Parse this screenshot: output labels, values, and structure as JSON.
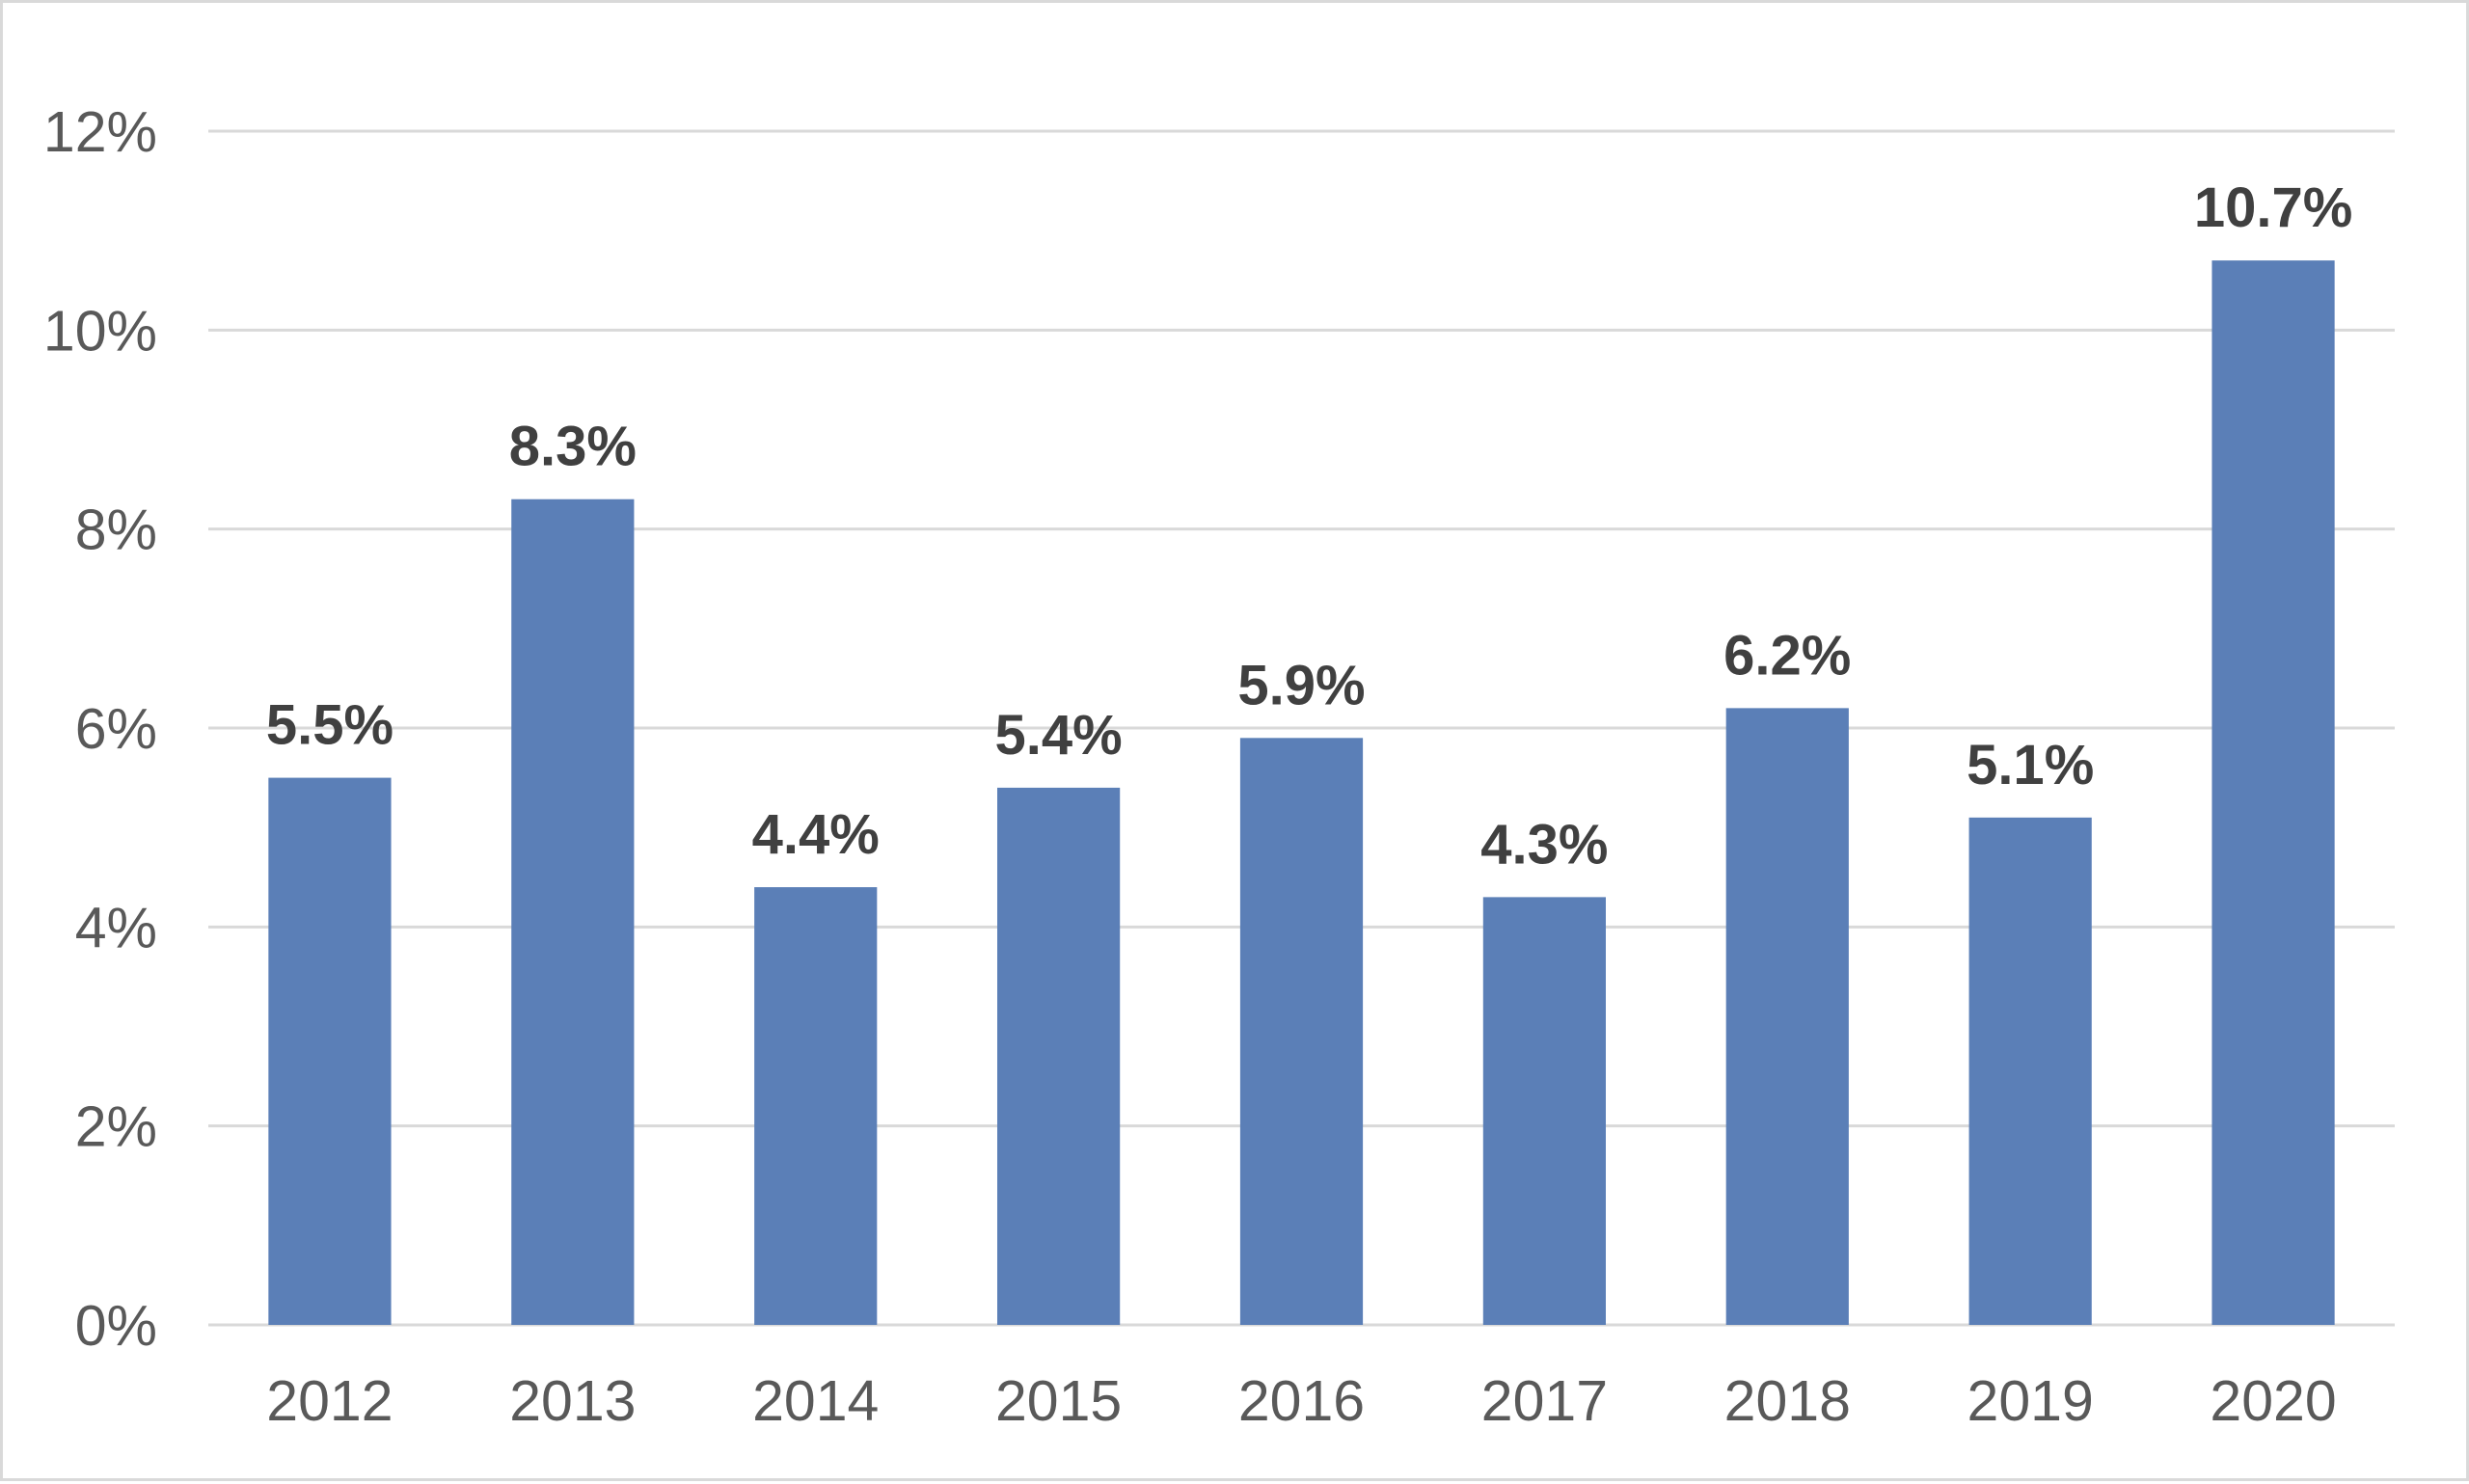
{
  "chart_data": {
    "type": "bar",
    "title": "",
    "xlabel": "",
    "ylabel": "",
    "categories": [
      "2012",
      "2013",
      "2014",
      "2015",
      "2016",
      "2017",
      "2018",
      "2019",
      "2020"
    ],
    "values": [
      5.5,
      8.3,
      4.4,
      5.4,
      5.9,
      4.3,
      6.2,
      5.1,
      10.7
    ],
    "data_labels": [
      "5.5%",
      "8.3%",
      "4.4%",
      "5.4%",
      "5.9%",
      "4.3%",
      "6.2%",
      "5.1%",
      "10.7%"
    ],
    "ylim": [
      0,
      12
    ],
    "y_ticks": [
      0,
      2,
      4,
      6,
      8,
      10,
      12
    ],
    "y_tick_labels": [
      "0%",
      "2%",
      "4%",
      "6%",
      "8%",
      "10%",
      "12%"
    ],
    "grid": true,
    "legend": "none",
    "bar_color": "#5b7fb7"
  }
}
